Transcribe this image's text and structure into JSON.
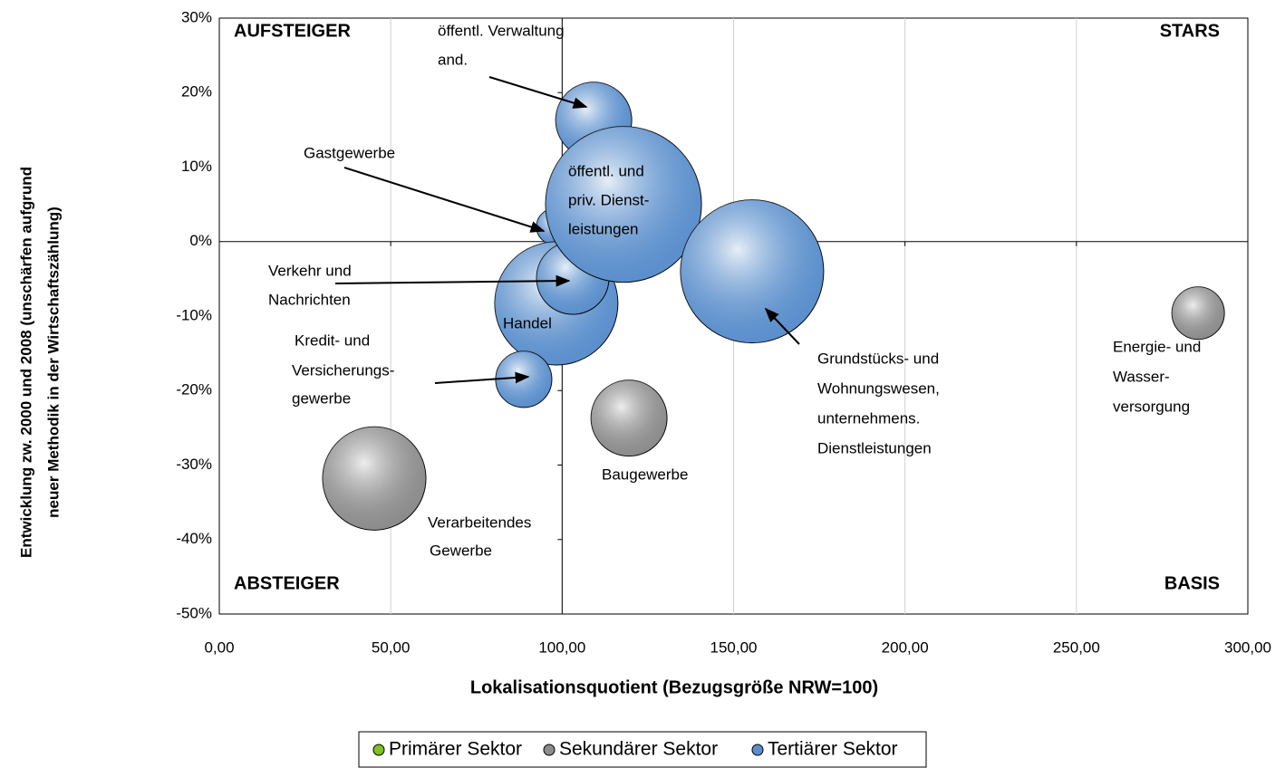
{
  "chart_data": {
    "type": "bubble",
    "x_label": "Lokalisationsquotient (Bezugsgröße NRW=100)",
    "y_label": [
      "Entwicklung zw. 2000 und 2008 (unschärfen aufgrund",
      "neuer Methodik in der Wirtschaftszählung)"
    ],
    "xlim": [
      0,
      300
    ],
    "ylim": [
      -50,
      30
    ],
    "xticks": [
      {
        "value": 0,
        "label": "0,00"
      },
      {
        "value": 50,
        "label": "50,00"
      },
      {
        "value": 100,
        "label": "100,00"
      },
      {
        "value": 150,
        "label": "150,00"
      },
      {
        "value": 200,
        "label": "200,00"
      },
      {
        "value": 250,
        "label": "250,00"
      },
      {
        "value": 300,
        "label": "300,00"
      }
    ],
    "yticks": [
      {
        "value": 30,
        "label": "30%"
      },
      {
        "value": 20,
        "label": "20%"
      },
      {
        "value": 10,
        "label": "10%"
      },
      {
        "value": 0,
        "label": "0%"
      },
      {
        "value": -10,
        "label": "-10%"
      },
      {
        "value": -20,
        "label": "-20%"
      },
      {
        "value": -30,
        "label": "-30%"
      },
      {
        "value": -40,
        "label": "-40%"
      },
      {
        "value": -50,
        "label": "-50%"
      }
    ],
    "reference_lines": {
      "x": 100,
      "y": 0
    },
    "grid": "vertical",
    "quadrants": [
      "AUFSTEIGER",
      "STARS",
      "ABSTEIGER",
      "BASIS"
    ],
    "legend_position": "bottom",
    "series": [
      {
        "name": "Primärer Sektor",
        "color": "#80c020",
        "x": [],
        "values": [],
        "sizes": [],
        "labels": []
      },
      {
        "name": "Sekundärer Sektor",
        "color": "#8c8c8c",
        "x": [
          119.5,
          45.2,
          285.5
        ],
        "values": [
          -23.7,
          -31.8,
          -9.6
        ],
        "sizes": [
          17.6,
          32.5,
          8.4
        ],
        "labels": [
          [
            "Baugewerbe"
          ],
          [
            "Verarbeitendes",
            "Gewerbe"
          ],
          [
            "Energie- und",
            "Wasser-",
            "versorgung"
          ]
        ]
      },
      {
        "name": "Tertiärer Sektor",
        "color": "#5b8fcc",
        "x": [
          97.8,
          109.2,
          98.3,
          103.1,
          117.9,
          155.4,
          88.8
        ],
        "values": [
          2.0,
          16.3,
          -8.3,
          -4.9,
          5.0,
          -4.0,
          -18.5
        ],
        "sizes": [
          4,
          17.6,
          46.2,
          16,
          74,
          62.4,
          9.6
        ],
        "labels": [
          [
            "Gastgewerbe"
          ],
          [
            "öffentl. Verwaltung",
            "and."
          ],
          [
            "Handel"
          ],
          [
            "Verkehr und",
            "Nachrichten"
          ],
          [
            "öffentl. und",
            "priv. Dienst-",
            "leistungen"
          ],
          [
            "Grundstücks- und",
            "Wohnungswesen,",
            "unternehmens.",
            "Dienstleistungen"
          ],
          [
            "Kredit- und",
            "Versicherungs-",
            "gewerbe"
          ]
        ]
      }
    ]
  }
}
